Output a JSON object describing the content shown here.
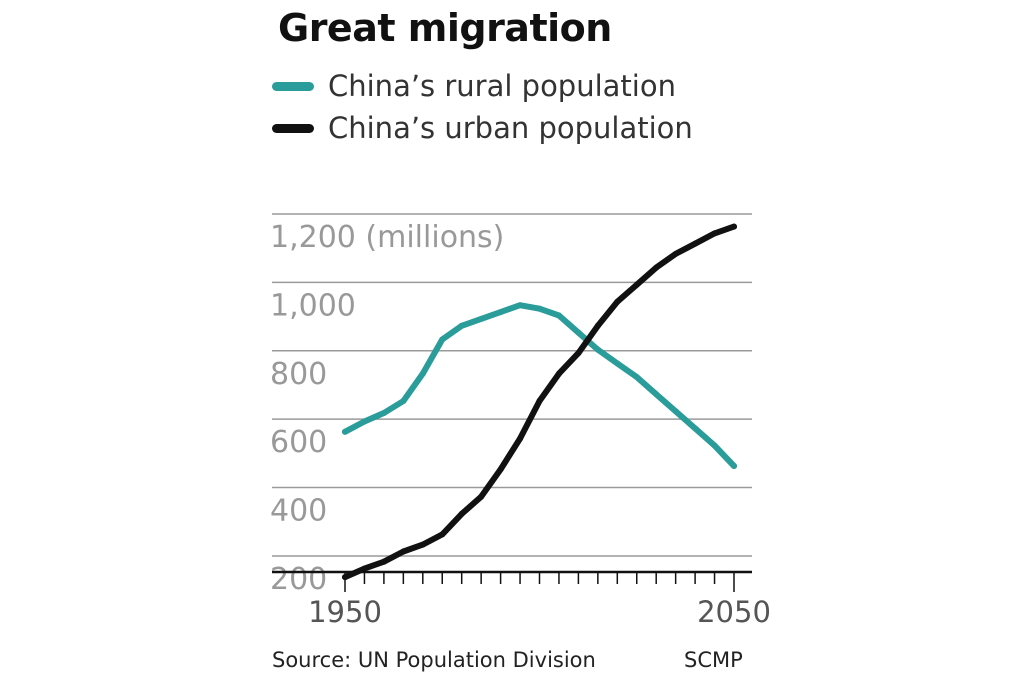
{
  "chart_data": {
    "type": "line",
    "title": "Great migration",
    "unit_label": "(millions)",
    "x_tick_labels": [
      "1950",
      "2050"
    ],
    "y_ticks": [
      200,
      400,
      600,
      800,
      1000,
      1200
    ],
    "y_tick_labels": [
      "200",
      "400",
      "600",
      "800",
      "1,000",
      "1,200"
    ],
    "xlim": [
      1950,
      2050
    ],
    "ylim": [
      80,
      1300
    ],
    "grid": true,
    "legend_position": "top-left",
    "series": [
      {
        "name": "China’s rural population",
        "color": "#2a9c9a",
        "x": [
          1950,
          1955,
          1960,
          1965,
          1970,
          1975,
          1980,
          1985,
          1990,
          1995,
          2000,
          2005,
          2010,
          2015,
          2020,
          2025,
          2030,
          2035,
          2040,
          2045,
          2050
        ],
        "y": [
          490,
          520,
          545,
          580,
          660,
          760,
          800,
          820,
          840,
          860,
          850,
          830,
          780,
          730,
          690,
          650,
          600,
          550,
          500,
          450,
          390
        ]
      },
      {
        "name": "China’s urban population",
        "color": "#111111",
        "x": [
          1950,
          1955,
          1960,
          1965,
          1970,
          1975,
          1980,
          1985,
          1990,
          1995,
          2000,
          2005,
          2010,
          2015,
          2020,
          2025,
          2030,
          2035,
          2040,
          2045,
          2050
        ],
        "y": [
          65,
          90,
          110,
          140,
          160,
          190,
          250,
          300,
          380,
          470,
          580,
          660,
          720,
          800,
          870,
          920,
          970,
          1010,
          1040,
          1070,
          1090
        ]
      }
    ]
  },
  "footer": {
    "source": "Source: UN Population Division",
    "credit": "SCMP"
  }
}
